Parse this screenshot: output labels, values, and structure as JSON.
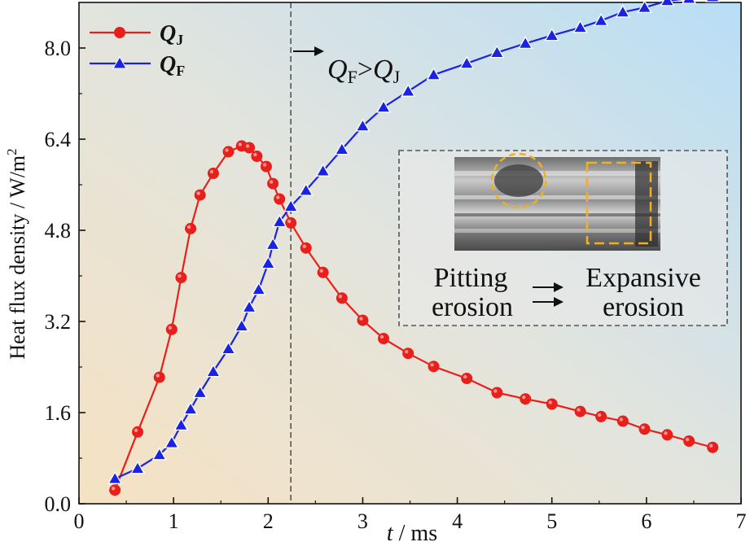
{
  "chart_data": {
    "type": "line",
    "title": "",
    "xlabel_symbol": "t",
    "xlabel_unit": " / ms",
    "ylabel": "Heat flux density / W/m",
    "ylabel_sup": "2",
    "xlim": [
      0,
      7
    ],
    "ylim": [
      0,
      8.8
    ],
    "xticks": [
      0,
      1,
      2,
      3,
      4,
      5,
      6,
      7
    ],
    "yticks": [
      0.0,
      1.6,
      3.2,
      4.8,
      6.4,
      8.0
    ],
    "ytick_labels": [
      "0.0",
      "1.6",
      "3.2",
      "4.8",
      "6.4",
      "8.0"
    ],
    "xtick_labels": [
      "0",
      "1",
      "2",
      "3",
      "4",
      "5",
      "6",
      "7"
    ],
    "grid": false,
    "legend_position": "top-left",
    "series": [
      {
        "name": "Q_J",
        "symbol": "Q",
        "subscript": "J",
        "color": "#e8201c",
        "marker": "circle",
        "x": [
          0.38,
          0.62,
          0.85,
          0.98,
          1.08,
          1.18,
          1.28,
          1.42,
          1.58,
          1.72,
          1.8,
          1.88,
          1.98,
          2.05,
          2.12,
          2.24,
          2.4,
          2.58,
          2.78,
          3.0,
          3.22,
          3.48,
          3.75,
          4.1,
          4.42,
          4.72,
          5.0,
          5.3,
          5.52,
          5.75,
          5.98,
          6.22,
          6.45,
          6.7
        ],
        "y": [
          0.24,
          1.26,
          2.22,
          3.06,
          3.97,
          4.83,
          5.42,
          5.8,
          6.18,
          6.28,
          6.25,
          6.1,
          5.92,
          5.62,
          5.35,
          4.93,
          4.49,
          4.06,
          3.61,
          3.22,
          2.9,
          2.64,
          2.41,
          2.2,
          1.95,
          1.84,
          1.75,
          1.62,
          1.53,
          1.45,
          1.31,
          1.21,
          1.1,
          0.99
        ],
        "show_every": 1
      },
      {
        "name": "Q_F",
        "symbol": "Q",
        "subscript": "F",
        "color": "#1a23e0",
        "marker": "triangle",
        "x": [
          0.38,
          0.62,
          0.85,
          0.98,
          1.08,
          1.18,
          1.28,
          1.42,
          1.58,
          1.72,
          1.8,
          1.9,
          2.0,
          2.05,
          2.12,
          2.24,
          2.4,
          2.58,
          2.78,
          3.0,
          3.22,
          3.48,
          3.75,
          4.1,
          4.42,
          4.72,
          5.0,
          5.3,
          5.52,
          5.75,
          5.98,
          6.22,
          6.45,
          6.7
        ],
        "y": [
          0.44,
          0.62,
          0.86,
          1.07,
          1.38,
          1.66,
          1.95,
          2.32,
          2.72,
          3.12,
          3.45,
          3.76,
          4.22,
          4.55,
          4.95,
          5.22,
          5.5,
          5.84,
          6.22,
          6.63,
          6.96,
          7.24,
          7.53,
          7.73,
          7.92,
          8.08,
          8.22,
          8.36,
          8.48,
          8.63,
          8.71,
          8.83,
          8.87,
          8.9
        ]
      }
    ],
    "annotations": {
      "crossover_x": 2.24,
      "region_label_symbol_a": "Q",
      "region_label_sub_a": "F",
      "region_label_op": ">",
      "region_label_symbol_b": "Q",
      "region_label_sub_b": "J",
      "inset_left_line1": "Pitting",
      "inset_left_line2": "erosion",
      "inset_right_line1": "Expansive",
      "inset_right_line2": "erosion"
    },
    "background_colors": {
      "bottom_left": "#f6e2c2",
      "top_right": "#b8def6",
      "crossover_line": "#555555",
      "inset_border": "#555555",
      "highlight": "#f0b020"
    }
  }
}
